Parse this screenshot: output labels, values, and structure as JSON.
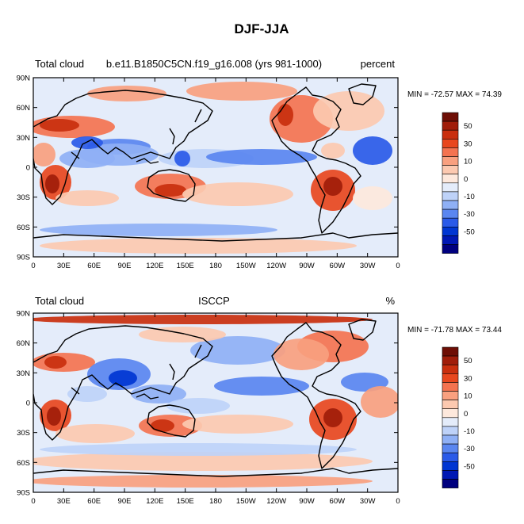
{
  "figure": {
    "title": "DJF-JJA",
    "colors": {
      "levels": [
        -55,
        -50,
        -40,
        -30,
        -20,
        -10,
        -5,
        0,
        5,
        10,
        20,
        30,
        40,
        50,
        55
      ],
      "palette": [
        "#00007f",
        "#0018b4",
        "#0036d2",
        "#2a5ae8",
        "#5a86f0",
        "#8fb0f5",
        "#bed2f8",
        "#e4ecfa",
        "#fde8dc",
        "#fcc9b0",
        "#f9a07f",
        "#f47350",
        "#e8471e",
        "#c92f0e",
        "#a01d0a",
        "#6e0e05"
      ],
      "coast": "#000000",
      "frame": "#000000"
    }
  },
  "panels": [
    {
      "left_label": "Total cloud",
      "center_label": "b.e11.B1850C5CN.f19_g16.008 (yrs 981-1000)",
      "right_label": "percent",
      "stats": "MIN = -72.57 MAX =  74.39",
      "min": -72.57,
      "max": 74.39
    },
    {
      "left_label": "Total cloud",
      "center_label": "ISCCP",
      "right_label": "%",
      "stats": "MIN = -71.78 MAX =  73.44",
      "min": -71.78,
      "max": 73.44
    }
  ],
  "axes": {
    "lat_ticks": [
      "90N",
      "60N",
      "30N",
      "0",
      "30S",
      "60S",
      "90S"
    ],
    "lon_ticks": [
      "0",
      "30E",
      "60E",
      "90E",
      "120E",
      "150E",
      "180",
      "150W",
      "120W",
      "90W",
      "60W",
      "30W",
      "0"
    ]
  },
  "colorbar": {
    "tick_labels": [
      "50",
      "30",
      "10",
      "0",
      "-10",
      "-30",
      "-50"
    ]
  }
}
